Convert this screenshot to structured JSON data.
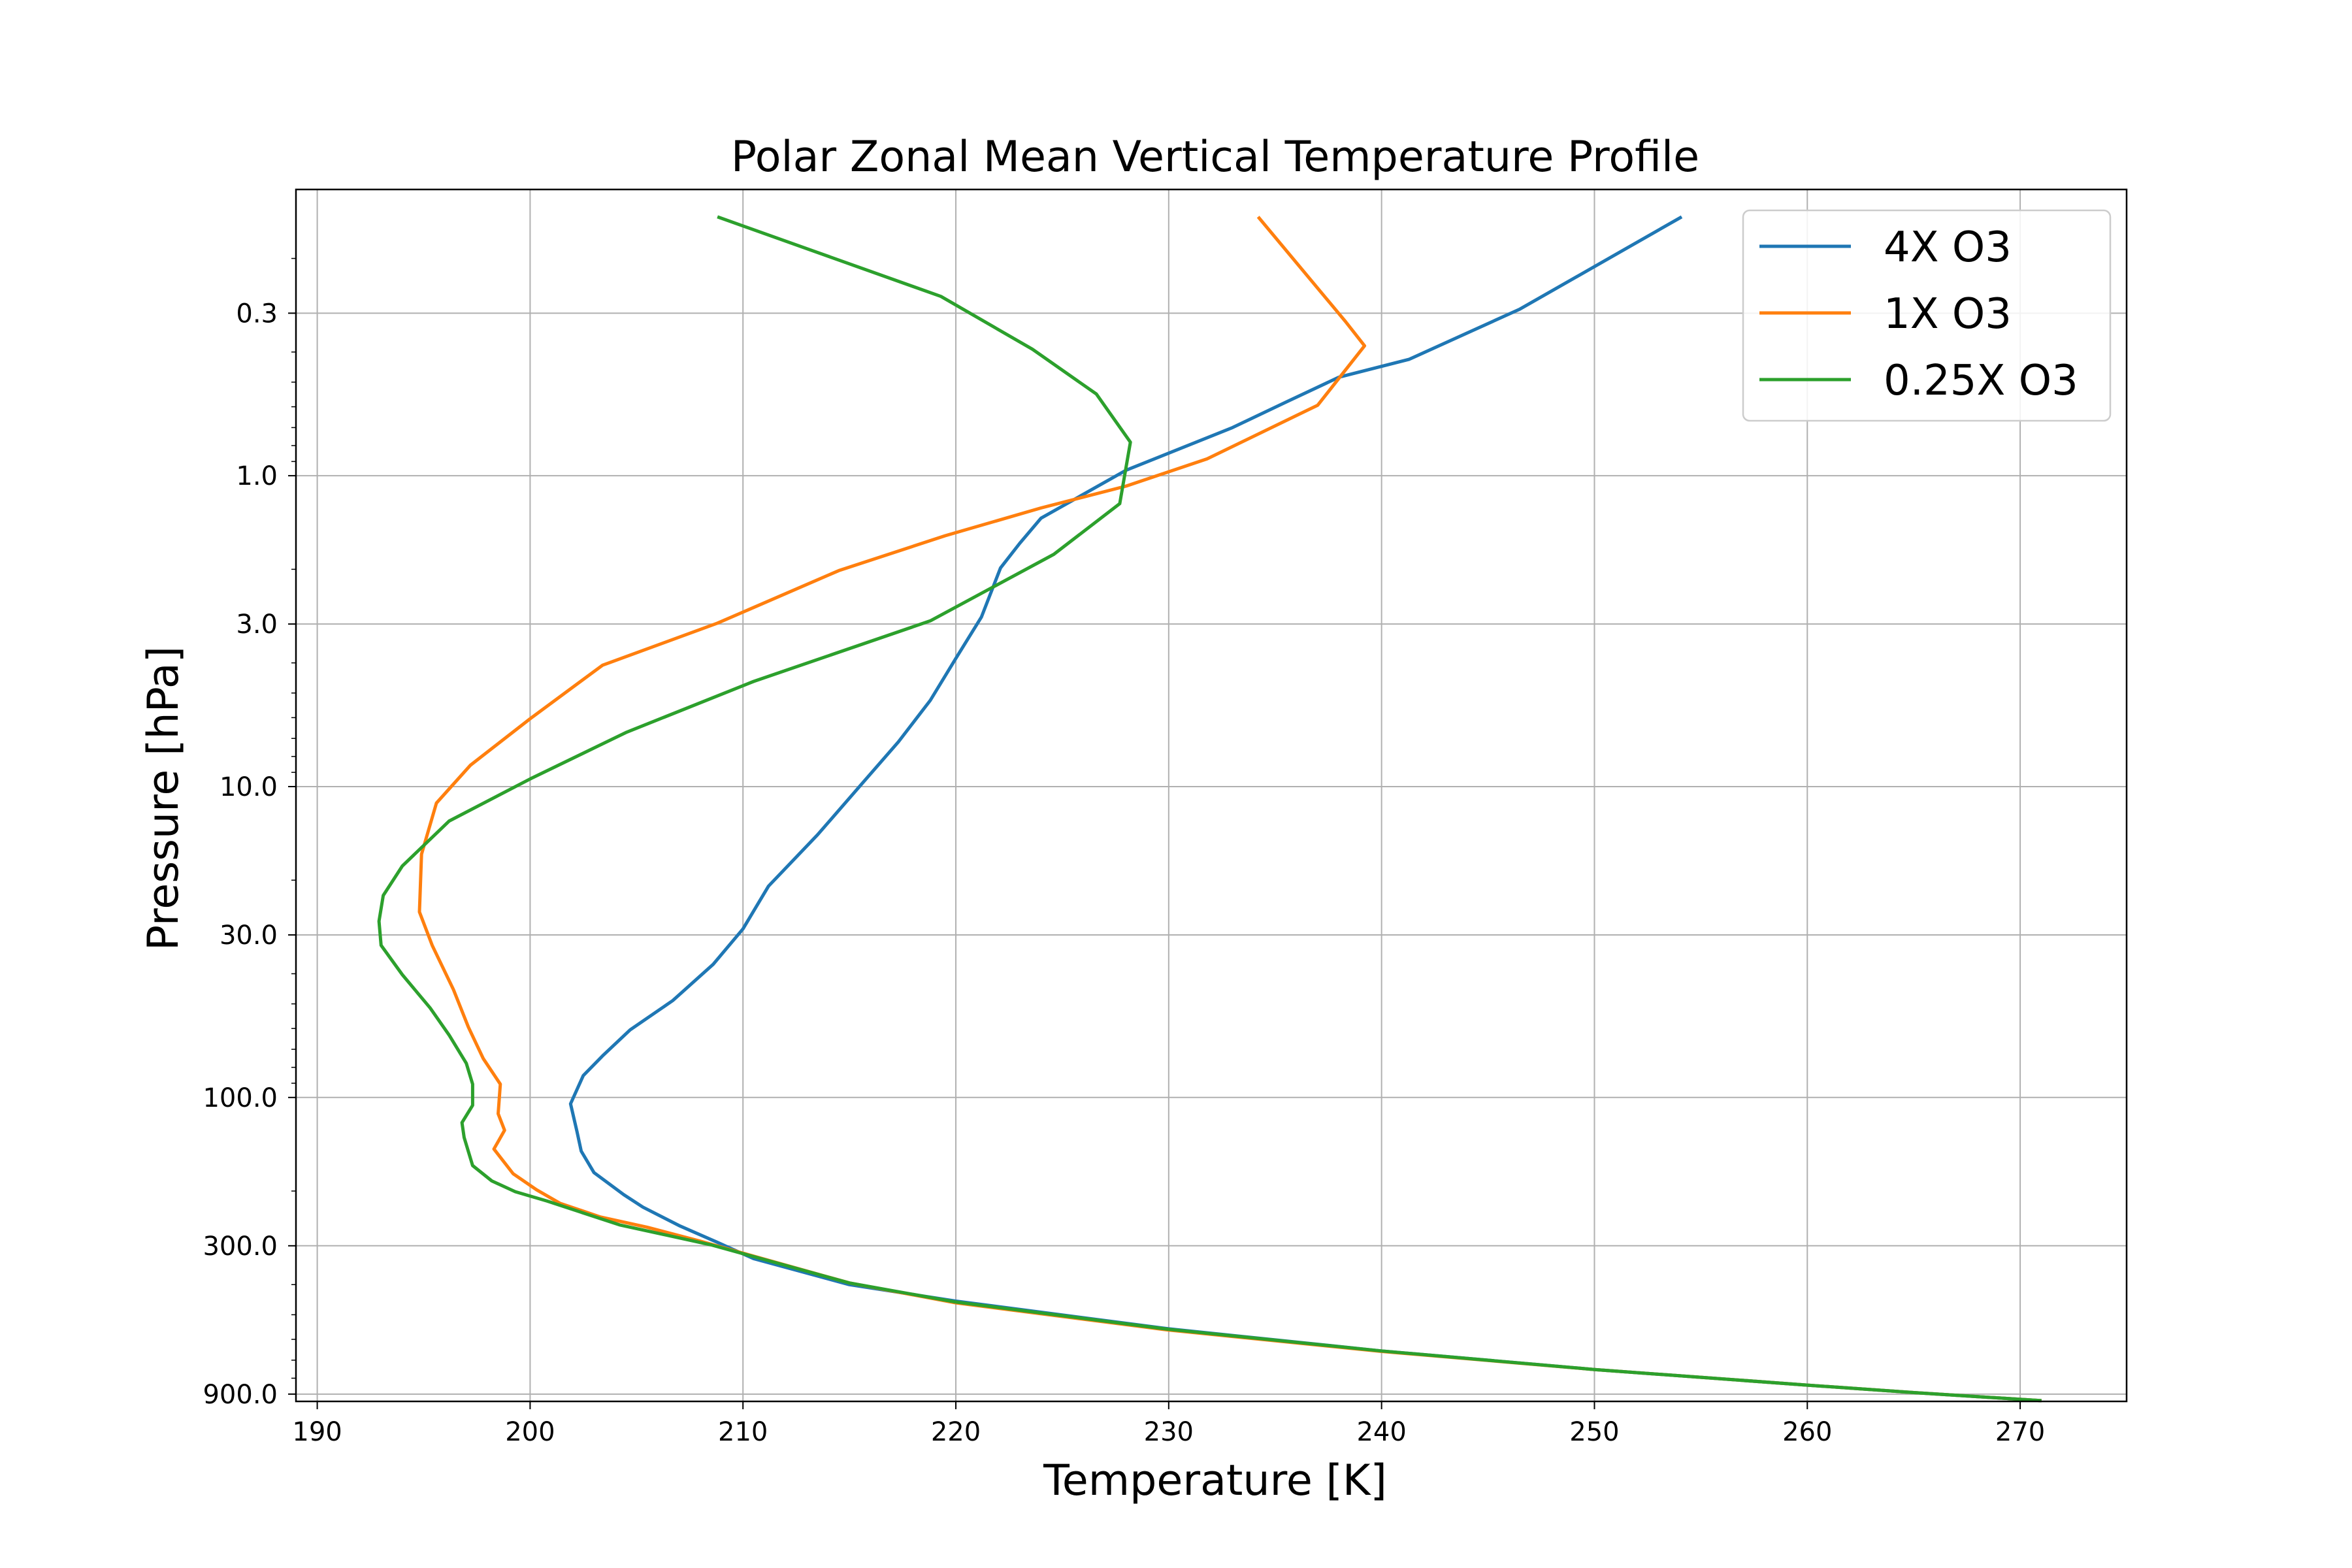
{
  "chart_data": {
    "type": "line",
    "title": "Polar Zonal Mean Vertical Temperature Profile",
    "xlabel": "Temperature [K]",
    "ylabel": "Pressure [hPa]",
    "xlim": [
      189,
      275
    ],
    "ylim": [
      950,
      0.12
    ],
    "yscale": "log",
    "y_inverted": true,
    "grid": true,
    "legend_position": "top-right",
    "xticks": [
      190,
      200,
      210,
      220,
      230,
      240,
      250,
      260,
      270
    ],
    "yticks": [
      {
        "value": 0.3,
        "label": "0.3"
      },
      {
        "value": 1.0,
        "label": "1.0"
      },
      {
        "value": 3.0,
        "label": "3.0"
      },
      {
        "value": 10.0,
        "label": "10.0"
      },
      {
        "value": 30.0,
        "label": "30.0"
      },
      {
        "value": 100.0,
        "label": "100.0"
      },
      {
        "value": 300.0,
        "label": "300.0"
      },
      {
        "value": 900.0,
        "label": "900.0"
      }
    ],
    "series": [
      {
        "name": "4X O3",
        "color": "#1f77b4",
        "points": [
          [
            254.1,
            0.147
          ],
          [
            246.5,
            0.291
          ],
          [
            241.3,
            0.422
          ],
          [
            238.0,
            0.482
          ],
          [
            235.5,
            0.58
          ],
          [
            233.0,
            0.7
          ],
          [
            228.0,
            0.96
          ],
          [
            224.0,
            1.37
          ],
          [
            223.0,
            1.65
          ],
          [
            222.1,
            1.98
          ],
          [
            221.2,
            2.85
          ],
          [
            220.0,
            3.87
          ],
          [
            218.8,
            5.28
          ],
          [
            217.3,
            7.18
          ],
          [
            215.5,
            9.95
          ],
          [
            213.5,
            14.3
          ],
          [
            211.2,
            20.9
          ],
          [
            210.0,
            28.7
          ],
          [
            208.6,
            37.3
          ],
          [
            206.7,
            48.8
          ],
          [
            204.7,
            60.6
          ],
          [
            203.4,
            73.5
          ],
          [
            202.5,
            85.0
          ],
          [
            201.9,
            104.8
          ],
          [
            202.2,
            128.6
          ],
          [
            202.4,
            148.8
          ],
          [
            203.0,
            174.4
          ],
          [
            204.4,
            205.5
          ],
          [
            205.3,
            225.4
          ],
          [
            207.0,
            258.3
          ],
          [
            208.8,
            292.6
          ],
          [
            210.5,
            330
          ],
          [
            215.0,
            400
          ],
          [
            220.0,
            452
          ],
          [
            230.0,
            555
          ],
          [
            240.0,
            654
          ],
          [
            250.0,
            750
          ],
          [
            260.0,
            842
          ],
          [
            265.0,
            890
          ],
          [
            271.0,
            945
          ]
        ]
      },
      {
        "name": "1X O3",
        "color": "#ff7f0e",
        "points": [
          [
            234.2,
            0.147
          ],
          [
            238.3,
            0.319
          ],
          [
            239.2,
            0.382
          ],
          [
            237.0,
            0.593
          ],
          [
            231.8,
            0.883
          ],
          [
            228.0,
            1.08
          ],
          [
            224.0,
            1.27
          ],
          [
            219.5,
            1.56
          ],
          [
            214.5,
            2.02
          ],
          [
            208.8,
            2.98
          ],
          [
            203.4,
            4.07
          ],
          [
            200.0,
            6.05
          ],
          [
            197.2,
            8.53
          ],
          [
            195.6,
            11.3
          ],
          [
            194.9,
            16.5
          ],
          [
            194.8,
            25.3
          ],
          [
            195.4,
            32.4
          ],
          [
            196.4,
            45.0
          ],
          [
            197.1,
            59.4
          ],
          [
            197.8,
            75.0
          ],
          [
            198.6,
            90.6
          ],
          [
            198.5,
            112.8
          ],
          [
            198.8,
            127.5
          ],
          [
            198.3,
            146.5
          ],
          [
            199.2,
            175.8
          ],
          [
            200.3,
            198.2
          ],
          [
            201.4,
            218.9
          ],
          [
            203.3,
            242.4
          ],
          [
            205.5,
            261.5
          ],
          [
            208.0,
            290
          ],
          [
            215.0,
            395
          ],
          [
            220.0,
            458
          ],
          [
            230.0,
            560
          ],
          [
            240.0,
            656
          ],
          [
            250.0,
            750
          ],
          [
            260.0,
            842
          ],
          [
            265.0,
            890
          ],
          [
            271.0,
            945
          ]
        ]
      },
      {
        "name": "0.25X O3",
        "color": "#2ca02c",
        "points": [
          [
            208.8,
            0.147
          ],
          [
            219.3,
            0.265
          ],
          [
            223.6,
            0.392
          ],
          [
            226.6,
            0.546
          ],
          [
            228.2,
            0.78
          ],
          [
            227.7,
            1.23
          ],
          [
            224.6,
            1.79
          ],
          [
            218.8,
            2.93
          ],
          [
            210.5,
            4.59
          ],
          [
            204.5,
            6.7
          ],
          [
            200.0,
            9.45
          ],
          [
            196.2,
            12.9
          ],
          [
            194.0,
            18.0
          ],
          [
            193.1,
            22.4
          ],
          [
            192.9,
            27.1
          ],
          [
            193.0,
            32.4
          ],
          [
            194.0,
            40.3
          ],
          [
            195.3,
            51.5
          ],
          [
            196.2,
            63.1
          ],
          [
            197.0,
            77.6
          ],
          [
            197.3,
            90.6
          ],
          [
            197.3,
            106.0
          ],
          [
            196.8,
            120.5
          ],
          [
            196.9,
            134.5
          ],
          [
            197.3,
            165.6
          ],
          [
            198.2,
            185.5
          ],
          [
            199.3,
            201.0
          ],
          [
            200.8,
            215.5
          ],
          [
            204.2,
            257.0
          ],
          [
            208.5,
            298
          ],
          [
            215.0,
            395
          ],
          [
            220.0,
            455
          ],
          [
            230.0,
            557
          ],
          [
            240.0,
            654
          ],
          [
            250.0,
            750
          ],
          [
            260.0,
            842
          ],
          [
            265.0,
            890
          ],
          [
            271.0,
            945
          ]
        ]
      }
    ]
  }
}
